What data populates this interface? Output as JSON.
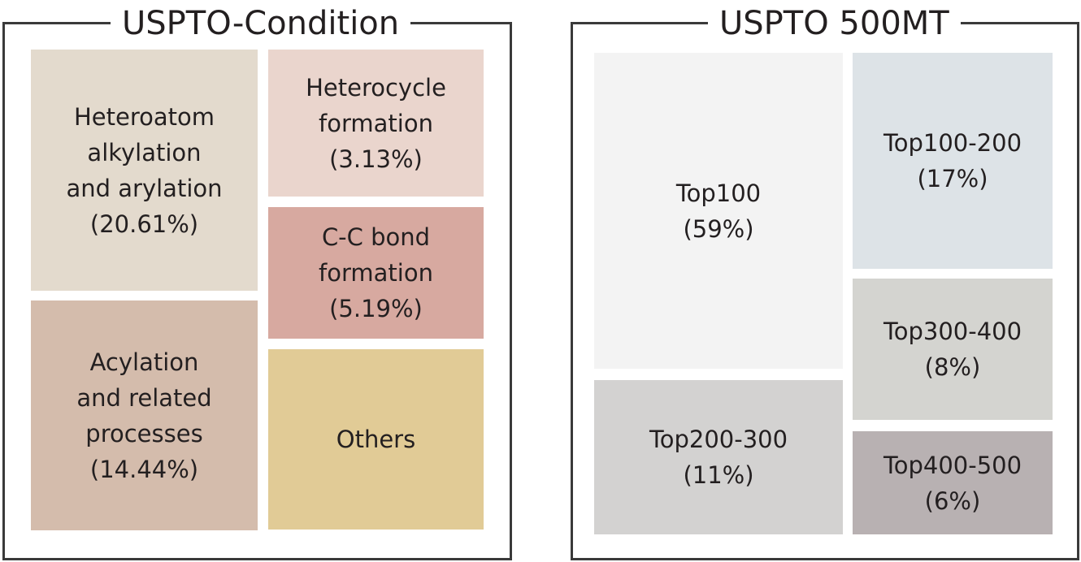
{
  "left_panel": {
    "title": "USPTO-Condition",
    "tiles": {
      "hetero": {
        "lines": [
          "Heteroatom",
          "alkylation",
          "and arylation",
          "(20.61%)"
        ],
        "color": "#e3dacd"
      },
      "acyl": {
        "lines": [
          "Acylation",
          "and related",
          "processes",
          "(14.44%)"
        ],
        "color": "#d4bcac"
      },
      "cycle": {
        "lines": [
          "Heterocycle",
          "formation",
          "(3.13%)"
        ],
        "color": "#ead5cd"
      },
      "cc": {
        "lines": [
          "C-C bond",
          "formation",
          "(5.19%)"
        ],
        "color": "#d7a9a0"
      },
      "others": {
        "lines": [
          "Others"
        ],
        "color": "#e1cb96"
      }
    }
  },
  "right_panel": {
    "title": "USPTO 500MT",
    "tiles": {
      "top100": {
        "lines": [
          "Top100",
          "(59%)"
        ],
        "color": "#f3f3f3"
      },
      "top200": {
        "lines": [
          "Top200-300",
          "(11%)"
        ],
        "color": "#d3d2d1"
      },
      "top1to2": {
        "lines": [
          "Top100-200",
          "(17%)"
        ],
        "color": "#dde3e7"
      },
      "top3to4": {
        "lines": [
          "Top300-400",
          "(8%)"
        ],
        "color": "#d4d4d0"
      },
      "top4to5": {
        "lines": [
          "Top400-500",
          "(6%)"
        ],
        "color": "#b8b1b2"
      }
    }
  }
}
